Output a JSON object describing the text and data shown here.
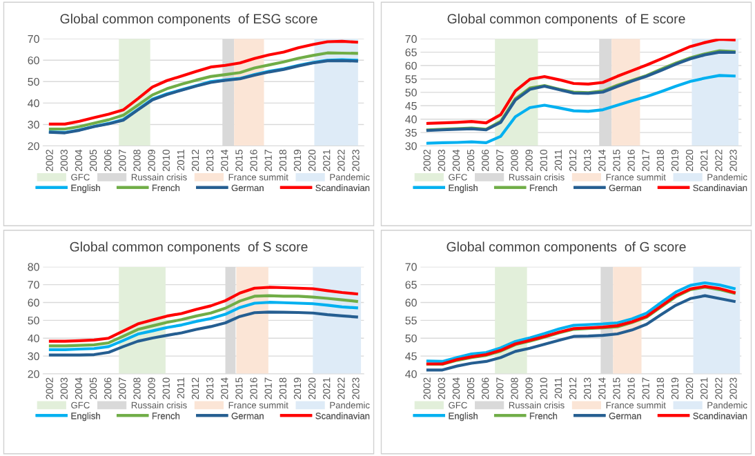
{
  "chart_data": [
    {
      "type": "line",
      "title": "Global common components  of ESG score",
      "x": [
        2002,
        2003,
        2004,
        2005,
        2006,
        2007,
        2008,
        2009,
        2010,
        2011,
        2012,
        2013,
        2014,
        2015,
        2016,
        2017,
        2018,
        2019,
        2020,
        2021,
        2022,
        2023
      ],
      "xlim": [
        2001.5,
        2023.5
      ],
      "xticks": [
        2002,
        2003,
        2004,
        2005,
        2006,
        2007,
        2008,
        2009,
        2010,
        2011,
        2012,
        2013,
        2014,
        2015,
        2016,
        2017,
        2018,
        2019,
        2020,
        2021,
        2022,
        2023
      ],
      "ylim": [
        20,
        70
      ],
      "yticks": [
        20,
        30,
        40,
        50,
        60,
        70
      ],
      "grid": "y",
      "legend": "bottom",
      "bands": [
        {
          "axis": "x",
          "from": 2006.7,
          "to": 2008.85,
          "label": "GFC",
          "color": "#e2efda"
        },
        {
          "axis": "x",
          "from": 2013.8,
          "to": 2014.6,
          "label": "Russain crisis",
          "color": "#d9d9d9"
        },
        {
          "axis": "x",
          "from": 2014.6,
          "to": 2016.65,
          "label": "France summit",
          "color": "#fbe5d6"
        },
        {
          "axis": "x",
          "from": 2020.1,
          "to": 2023.1,
          "label": "Pandemic",
          "color": "#deebf7"
        }
      ],
      "series": [
        {
          "name": "English",
          "color": "#00b0f0",
          "values": [
            26.5,
            26.3,
            27.5,
            29.1,
            30.5,
            32.3,
            37,
            41.8,
            44.3,
            46.2,
            48.1,
            50,
            50.8,
            51.5,
            53.3,
            54.8,
            56,
            57.6,
            58.9,
            60,
            60.2,
            60
          ]
        },
        {
          "name": "French",
          "color": "#70ad47",
          "values": [
            27.9,
            27.9,
            29,
            30.6,
            32.2,
            34.3,
            39,
            43.8,
            46.7,
            48.8,
            50.7,
            52.4,
            53.3,
            54.2,
            56.4,
            57.8,
            59.2,
            60.9,
            62.2,
            63.4,
            63.3,
            63.2
          ]
        },
        {
          "name": "German",
          "color": "#255e91",
          "values": [
            26.4,
            26.1,
            27.3,
            29,
            30.3,
            32,
            36.8,
            41.5,
            44,
            46,
            47.9,
            49.6,
            50.6,
            51.3,
            53,
            54.5,
            55.7,
            57.3,
            58.7,
            59.7,
            59.8,
            59.6
          ]
        },
        {
          "name": "Scandinavian",
          "color": "#ff0000",
          "values": [
            30.2,
            30.2,
            31.5,
            33.2,
            34.8,
            36.8,
            42,
            47.5,
            50.5,
            52.6,
            54.8,
            56.8,
            57.6,
            58.7,
            60.8,
            62.5,
            63.8,
            65.8,
            67.3,
            68.6,
            68.8,
            68.4
          ]
        }
      ]
    },
    {
      "type": "line",
      "title": "Global common components  of E score",
      "x": [
        2002,
        2003,
        2004,
        2005,
        2006,
        2007,
        2008,
        2009,
        2010,
        2011,
        2012,
        2013,
        2014,
        2015,
        2016,
        2017,
        2018,
        2019,
        2020,
        2021,
        2022,
        2023
      ],
      "xlim": [
        2001.5,
        2023.5
      ],
      "xticks": [
        2002,
        2003,
        2004,
        2005,
        2006,
        2007,
        2008,
        2009,
        2010,
        2011,
        2012,
        2013,
        2014,
        2015,
        2016,
        2017,
        2018,
        2019,
        2020,
        2021,
        2022,
        2023
      ],
      "ylim": [
        30,
        70
      ],
      "yticks": [
        30,
        35,
        40,
        45,
        50,
        55,
        60,
        65,
        70
      ],
      "grid": "y",
      "legend": "bottom",
      "bands": [
        {
          "axis": "x",
          "from": 2006.6,
          "to": 2009.55,
          "label": "GFC",
          "color": "#e2efda"
        },
        {
          "axis": "x",
          "from": 2013.75,
          "to": 2014.6,
          "label": "Russain crisis",
          "color": "#d9d9d9"
        },
        {
          "axis": "x",
          "from": 2014.6,
          "to": 2016.55,
          "label": "France summit",
          "color": "#fbe5d6"
        },
        {
          "axis": "x",
          "from": 2020.1,
          "to": 2023.3,
          "label": "Pandemic",
          "color": "#deebf7"
        }
      ],
      "series": [
        {
          "name": "English",
          "color": "#00b0f0",
          "values": [
            31,
            31.2,
            31.3,
            31.5,
            31.2,
            33.6,
            40.9,
            44.3,
            45.2,
            44.2,
            43.1,
            42.9,
            43.5,
            45.2,
            46.9,
            48.4,
            50.3,
            52.3,
            54.1,
            55.3,
            56.3,
            56.1
          ]
        },
        {
          "name": "French",
          "color": "#70ad47",
          "values": [
            36,
            36.2,
            36.4,
            36.7,
            36.2,
            39.2,
            47.6,
            51.6,
            52.5,
            51.2,
            50.1,
            49.9,
            50.5,
            52.7,
            54.5,
            56.3,
            58.7,
            60.9,
            62.9,
            64.4,
            65.5,
            65.2
          ]
        },
        {
          "name": "German",
          "color": "#255e91",
          "values": [
            35.8,
            36,
            36.2,
            36.4,
            36,
            38.8,
            47.1,
            51.1,
            52.3,
            51,
            49.7,
            49.6,
            50.1,
            52.2,
            54.2,
            56,
            58.2,
            60.5,
            62.5,
            64,
            65,
            64.9
          ]
        },
        {
          "name": "Scandinavian",
          "color": "#ff0000",
          "values": [
            38.4,
            38.6,
            38.8,
            39.1,
            38.6,
            41.7,
            50.5,
            54.9,
            55.9,
            54.7,
            53.3,
            53.1,
            53.7,
            56,
            58.1,
            60.2,
            62.5,
            64.8,
            67.1,
            68.6,
            69.8,
            69.6
          ]
        }
      ]
    },
    {
      "type": "line",
      "title": "Global common components  of S score",
      "x": [
        2002,
        2003,
        2004,
        2005,
        2006,
        2007,
        2008,
        2009,
        2010,
        2011,
        2012,
        2013,
        2014,
        2015,
        2016,
        2017,
        2018,
        2019,
        2020,
        2021,
        2022,
        2023
      ],
      "xlim": [
        2001.5,
        2023.5
      ],
      "xticks": [
        2002,
        2003,
        2004,
        2005,
        2006,
        2007,
        2008,
        2009,
        2010,
        2011,
        2012,
        2013,
        2014,
        2015,
        2016,
        2017,
        2018,
        2019,
        2020,
        2021,
        2022,
        2023
      ],
      "ylim": [
        20,
        80
      ],
      "yticks": [
        20,
        30,
        40,
        50,
        60,
        70,
        80
      ],
      "grid": "y",
      "legend": "bottom",
      "bands": [
        {
          "axis": "x",
          "from": 2006.7,
          "to": 2009.9,
          "label": "GFC",
          "color": "#e2efda"
        },
        {
          "axis": "x",
          "from": 2014.0,
          "to": 2014.7,
          "label": "Russain crisis",
          "color": "#d9d9d9"
        },
        {
          "axis": "x",
          "from": 2014.75,
          "to": 2016.95,
          "label": "France summit",
          "color": "#fbe5d6"
        },
        {
          "axis": "x",
          "from": 2020.0,
          "to": 2023.3,
          "label": "Pandemic",
          "color": "#deebf7"
        }
      ],
      "series": [
        {
          "name": "English",
          "color": "#00b0f0",
          "values": [
            33.6,
            33.6,
            33.9,
            34.2,
            35.3,
            38.7,
            42.3,
            44.1,
            46,
            47.4,
            49.4,
            51,
            53.4,
            57.2,
            59.6,
            60.1,
            59.9,
            59.6,
            59.3,
            58.5,
            57.5,
            57
          ]
        },
        {
          "name": "French",
          "color": "#70ad47",
          "values": [
            35.7,
            35.7,
            36,
            36.3,
            37.4,
            41.1,
            44.9,
            46.9,
            48.9,
            50.4,
            52.4,
            54.1,
            56.8,
            60.8,
            63.5,
            63.8,
            63.5,
            63.5,
            63,
            62.3,
            61.5,
            60.6
          ]
        },
        {
          "name": "German",
          "color": "#255e91",
          "values": [
            30.6,
            30.6,
            30.6,
            30.8,
            32.1,
            35.3,
            38.3,
            40.1,
            41.6,
            43,
            44.9,
            46.5,
            48.6,
            52.2,
            54.3,
            54.6,
            54.5,
            54.4,
            54.1,
            53.2,
            52.5,
            51.9
          ]
        },
        {
          "name": "Scandinavian",
          "color": "#ff0000",
          "values": [
            38.3,
            38.3,
            38.6,
            39,
            40,
            44,
            48,
            50.2,
            52.4,
            53.8,
            56.1,
            58.1,
            61,
            65.3,
            68,
            68.5,
            68.3,
            68,
            67.7,
            66.6,
            65.6,
            64.8
          ]
        }
      ]
    },
    {
      "type": "line",
      "title": "Global common components  of G score",
      "x": [
        2002,
        2003,
        2004,
        2005,
        2006,
        2007,
        2008,
        2009,
        2010,
        2011,
        2012,
        2013,
        2014,
        2015,
        2016,
        2017,
        2018,
        2019,
        2020,
        2021,
        2022,
        2023
      ],
      "xlim": [
        2001.5,
        2023.5
      ],
      "xticks": [
        2002,
        2003,
        2004,
        2005,
        2006,
        2007,
        2008,
        2009,
        2010,
        2011,
        2012,
        2013,
        2014,
        2015,
        2016,
        2017,
        2018,
        2019,
        2020,
        2021,
        2022,
        2023
      ],
      "ylim": [
        40,
        70
      ],
      "yticks": [
        40,
        45,
        50,
        55,
        60,
        65,
        70
      ],
      "grid": "y",
      "legend": "bottom",
      "bands": [
        {
          "axis": "x",
          "from": 2006.6,
          "to": 2008.8,
          "label": "GFC",
          "color": "#e2efda"
        },
        {
          "axis": "x",
          "from": 2013.85,
          "to": 2014.7,
          "label": "Russain crisis",
          "color": "#d9d9d9"
        },
        {
          "axis": "x",
          "from": 2014.7,
          "to": 2016.65,
          "label": "France summit",
          "color": "#fbe5d6"
        },
        {
          "axis": "x",
          "from": 2020.2,
          "to": 2023.4,
          "label": "Pandemic",
          "color": "#deebf7"
        }
      ],
      "series": [
        {
          "name": "English",
          "color": "#00b0f0",
          "values": [
            43.6,
            43.5,
            44.6,
            45.6,
            46,
            47.3,
            49.1,
            50.1,
            51.3,
            52.6,
            53.6,
            53.8,
            54,
            54.3,
            55.4,
            57,
            60,
            62.9,
            64.8,
            65.5,
            64.9,
            63.9
          ]
        },
        {
          "name": "French",
          "color": "#70ad47",
          "values": [
            42.7,
            42.7,
            43.8,
            44.6,
            45.2,
            46.4,
            48.2,
            49.2,
            50.3,
            51.5,
            52.5,
            52.7,
            52.9,
            53.2,
            54.4,
            55.9,
            58.8,
            61.6,
            63.6,
            64.3,
            63.6,
            62.6
          ]
        },
        {
          "name": "German",
          "color": "#255e91",
          "values": [
            41.1,
            41.1,
            42.2,
            43,
            43.5,
            44.6,
            46.3,
            47.2,
            48.3,
            49.4,
            50.5,
            50.6,
            50.8,
            51.2,
            52.3,
            53.9,
            56.6,
            59.2,
            61.1,
            61.9,
            61.1,
            60.3
          ]
        },
        {
          "name": "Scandinavian",
          "color": "#ff0000",
          "values": [
            42.8,
            42.8,
            44,
            44.8,
            45.4,
            46.6,
            48.4,
            49.4,
            50.5,
            51.7,
            52.7,
            52.9,
            53.1,
            53.5,
            54.6,
            56.1,
            59,
            61.9,
            63.8,
            64.5,
            63.9,
            62.8
          ]
        }
      ]
    }
  ]
}
